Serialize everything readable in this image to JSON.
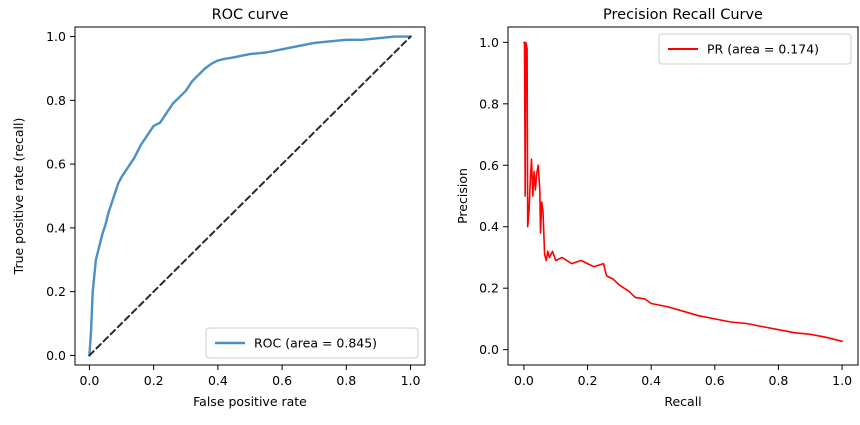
{
  "chart_data": [
    {
      "type": "line",
      "title": "ROC curve",
      "xlabel": "False positive rate",
      "ylabel": "True positive rate (recall)",
      "xlim": [
        -0.045,
        1.045
      ],
      "ylim": [
        -0.03,
        1.03
      ],
      "xticks": [
        "0.0",
        "0.2",
        "0.4",
        "0.6",
        "0.8",
        "1.0"
      ],
      "yticks": [
        "0.0",
        "0.2",
        "0.4",
        "0.6",
        "0.8",
        "1.0"
      ],
      "legend_position": "lower-right",
      "grid": false,
      "series": [
        {
          "name": "ROC (area = 0.845)",
          "color": "#4a90c4",
          "points": [
            [
              0.0,
              0.0
            ],
            [
              0.005,
              0.08
            ],
            [
              0.01,
              0.2
            ],
            [
              0.015,
              0.25
            ],
            [
              0.02,
              0.3
            ],
            [
              0.03,
              0.34
            ],
            [
              0.04,
              0.38
            ],
            [
              0.05,
              0.41
            ],
            [
              0.06,
              0.45
            ],
            [
              0.07,
              0.48
            ],
            [
              0.08,
              0.51
            ],
            [
              0.09,
              0.54
            ],
            [
              0.1,
              0.56
            ],
            [
              0.12,
              0.59
            ],
            [
              0.14,
              0.62
            ],
            [
              0.16,
              0.66
            ],
            [
              0.18,
              0.69
            ],
            [
              0.2,
              0.72
            ],
            [
              0.22,
              0.73
            ],
            [
              0.24,
              0.76
            ],
            [
              0.26,
              0.79
            ],
            [
              0.28,
              0.81
            ],
            [
              0.3,
              0.83
            ],
            [
              0.32,
              0.86
            ],
            [
              0.34,
              0.88
            ],
            [
              0.36,
              0.9
            ],
            [
              0.38,
              0.915
            ],
            [
              0.4,
              0.925
            ],
            [
              0.42,
              0.93
            ],
            [
              0.45,
              0.935
            ],
            [
              0.5,
              0.945
            ],
            [
              0.55,
              0.95
            ],
            [
              0.6,
              0.96
            ],
            [
              0.65,
              0.97
            ],
            [
              0.7,
              0.98
            ],
            [
              0.75,
              0.985
            ],
            [
              0.8,
              0.99
            ],
            [
              0.85,
              0.99
            ],
            [
              0.9,
              0.995
            ],
            [
              0.95,
              1.0
            ],
            [
              1.0,
              1.0
            ]
          ]
        },
        {
          "name": "",
          "color": "#2b2b2b",
          "dashed": true,
          "points": [
            [
              0.0,
              0.0
            ],
            [
              1.0,
              1.0
            ]
          ]
        }
      ]
    },
    {
      "type": "line",
      "title": "Precision Recall Curve",
      "xlabel": "Recall",
      "ylabel": "Precision",
      "xlim": [
        -0.05,
        1.05
      ],
      "ylim": [
        -0.05,
        1.05
      ],
      "xticks": [
        "0.0",
        "0.2",
        "0.4",
        "0.6",
        "0.8",
        "1.0"
      ],
      "yticks": [
        "0.0",
        "0.2",
        "0.4",
        "0.6",
        "0.8",
        "1.0"
      ],
      "legend_position": "top-right",
      "grid": false,
      "series": [
        {
          "name": "PR (area = 0.174)",
          "color": "#ff0000",
          "points": [
            [
              0.0,
              1.0
            ],
            [
              0.002,
              1.0
            ],
            [
              0.004,
              0.5
            ],
            [
              0.006,
              1.0
            ],
            [
              0.01,
              0.98
            ],
            [
              0.012,
              0.4
            ],
            [
              0.016,
              0.45
            ],
            [
              0.02,
              0.55
            ],
            [
              0.024,
              0.62
            ],
            [
              0.028,
              0.5
            ],
            [
              0.032,
              0.58
            ],
            [
              0.036,
              0.52
            ],
            [
              0.04,
              0.57
            ],
            [
              0.045,
              0.6
            ],
            [
              0.05,
              0.52
            ],
            [
              0.052,
              0.38
            ],
            [
              0.056,
              0.48
            ],
            [
              0.06,
              0.45
            ],
            [
              0.065,
              0.31
            ],
            [
              0.07,
              0.29
            ],
            [
              0.075,
              0.32
            ],
            [
              0.08,
              0.3
            ],
            [
              0.09,
              0.32
            ],
            [
              0.1,
              0.29
            ],
            [
              0.12,
              0.3
            ],
            [
              0.15,
              0.28
            ],
            [
              0.18,
              0.29
            ],
            [
              0.2,
              0.28
            ],
            [
              0.22,
              0.27
            ],
            [
              0.25,
              0.28
            ],
            [
              0.26,
              0.24
            ],
            [
              0.28,
              0.23
            ],
            [
              0.3,
              0.21
            ],
            [
              0.33,
              0.19
            ],
            [
              0.35,
              0.17
            ],
            [
              0.38,
              0.165
            ],
            [
              0.4,
              0.15
            ],
            [
              0.45,
              0.14
            ],
            [
              0.5,
              0.125
            ],
            [
              0.55,
              0.11
            ],
            [
              0.6,
              0.1
            ],
            [
              0.65,
              0.09
            ],
            [
              0.7,
              0.085
            ],
            [
              0.75,
              0.075
            ],
            [
              0.8,
              0.065
            ],
            [
              0.85,
              0.055
            ],
            [
              0.9,
              0.05
            ],
            [
              0.95,
              0.04
            ],
            [
              1.0,
              0.027
            ]
          ]
        }
      ]
    }
  ]
}
